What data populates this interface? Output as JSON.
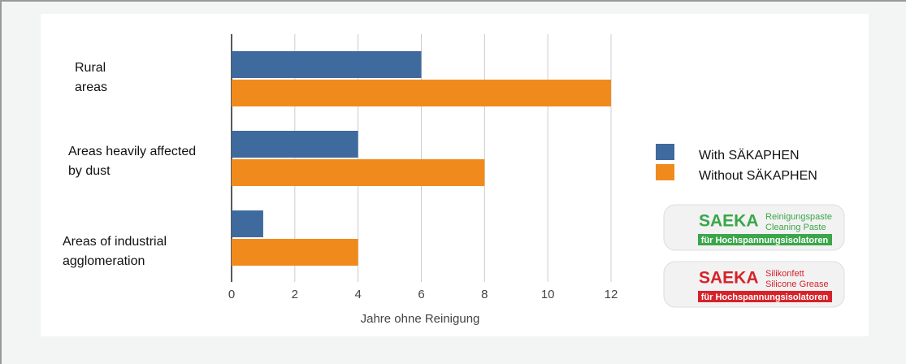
{
  "chart_data": {
    "type": "bar",
    "orientation": "horizontal",
    "categories": [
      "Rural areas",
      "Areas heavily affected by dust",
      "Areas of industrial agglomeration"
    ],
    "series": [
      {
        "name": "With SÄKAPHEN",
        "color": "#3e6a9e",
        "values": [
          6,
          4,
          1
        ]
      },
      {
        "name": "Without SÄKAPHEN",
        "color": "#f08a1c",
        "values": [
          12,
          8,
          4
        ]
      }
    ],
    "xlabel": "Jahre ohne Reinigung",
    "xlim": [
      0,
      12
    ],
    "xticks": [
      0,
      2,
      4,
      6,
      8,
      10,
      12
    ],
    "grid": true
  },
  "products": [
    {
      "brand": "SAEKA",
      "name_de": "Reinigungspaste",
      "name_en": "Cleaning Paste",
      "use": "für Hochspannungsisolatoren",
      "color": "#3aa64a"
    },
    {
      "brand": "SAEKA",
      "name_de": "Silikonfett",
      "name_en": "Silicone Grease",
      "use": "für Hochspannungsisolatoren",
      "color": "#d6232a"
    }
  ]
}
